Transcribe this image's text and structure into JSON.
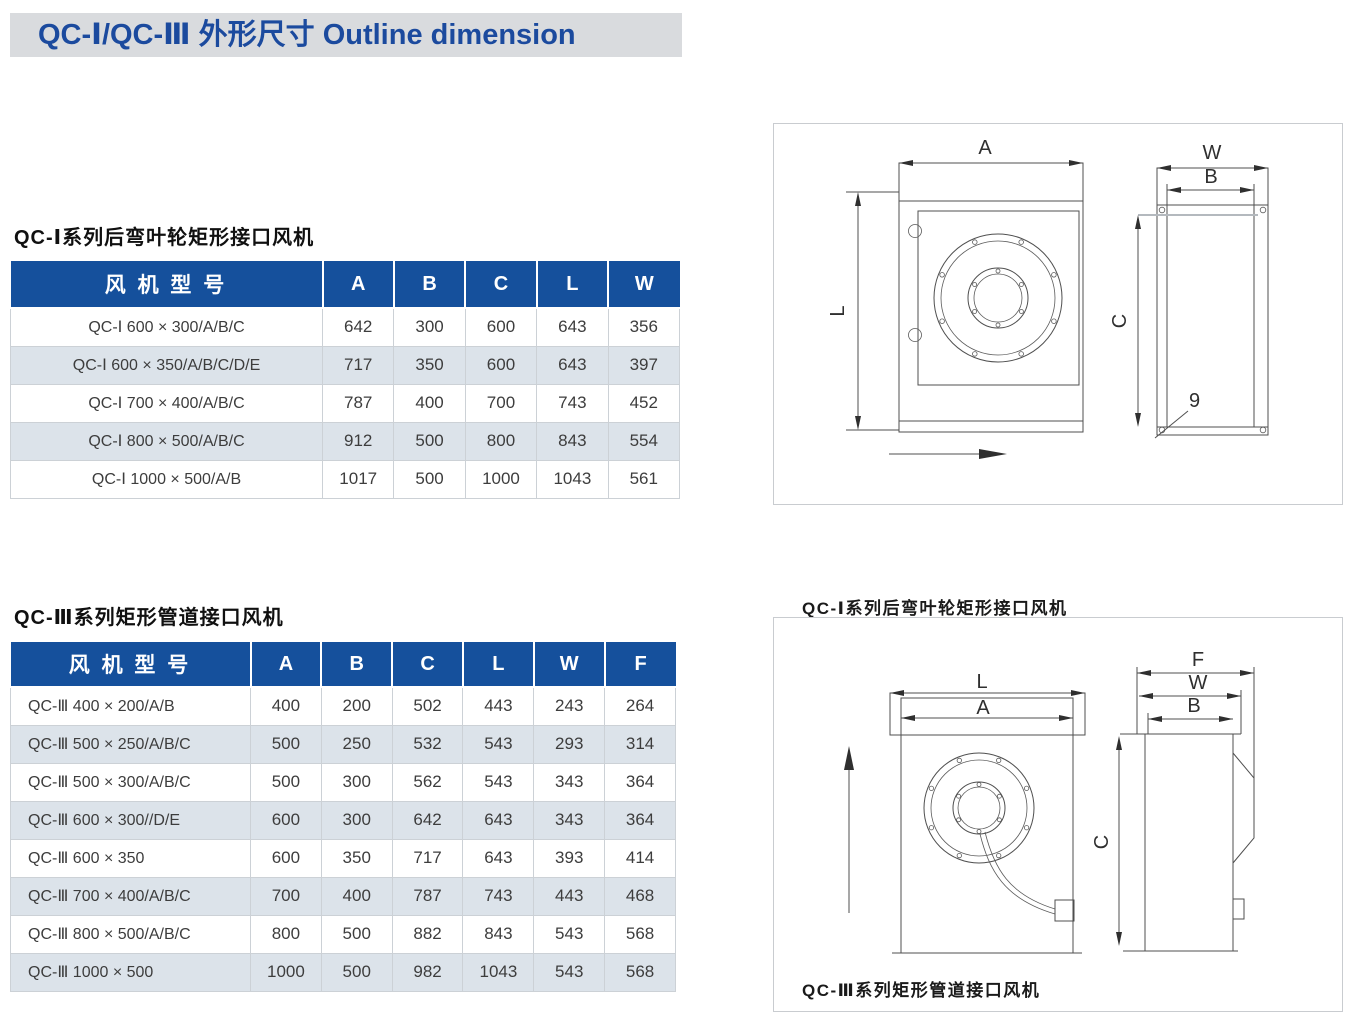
{
  "title_bar": {
    "text": "QC-Ⅰ/QC-Ⅲ  外形尺寸  Outline dimension"
  },
  "section1": {
    "heading": "QC-Ⅰ系列后弯叶轮矩形接口风机",
    "table": {
      "model_header": "风 机 型 号",
      "dim_headers": [
        "A",
        "B",
        "C",
        "L",
        "W"
      ],
      "rows": [
        {
          "model": "QC-Ⅰ 600 × 300/A/B/C",
          "values": [
            "642",
            "300",
            "600",
            "643",
            "356"
          ]
        },
        {
          "model": "QC-Ⅰ 600 × 350/A/B/C/D/E",
          "values": [
            "717",
            "350",
            "600",
            "643",
            "397"
          ]
        },
        {
          "model": "QC-Ⅰ 700 × 400/A/B/C",
          "values": [
            "787",
            "400",
            "700",
            "743",
            "452"
          ]
        },
        {
          "model": "QC-Ⅰ 800 × 500/A/B/C",
          "values": [
            "912",
            "500",
            "800",
            "843",
            "554"
          ]
        },
        {
          "model": "QC-Ⅰ 1000 × 500/A/B",
          "values": [
            "1017",
            "500",
            "1000",
            "1043",
            "561"
          ]
        }
      ]
    },
    "diagram": {
      "caption": "QC-Ⅰ系列后弯叶轮矩形接口风机",
      "labels": {
        "A": "A",
        "W": "W",
        "B": "B",
        "L": "L",
        "C": "C",
        "hole": "9"
      }
    }
  },
  "section2": {
    "heading": "QC-Ⅲ系列矩形管道接口风机",
    "table": {
      "model_header": "风 机 型 号",
      "dim_headers": [
        "A",
        "B",
        "C",
        "L",
        "W",
        "F"
      ],
      "rows": [
        {
          "model": "QC-Ⅲ 400 × 200/A/B",
          "values": [
            "400",
            "200",
            "502",
            "443",
            "243",
            "264"
          ]
        },
        {
          "model": "QC-Ⅲ 500 × 250/A/B/C",
          "values": [
            "500",
            "250",
            "532",
            "543",
            "293",
            "314"
          ]
        },
        {
          "model": "QC-Ⅲ 500 × 300/A/B/C",
          "values": [
            "500",
            "300",
            "562",
            "543",
            "343",
            "364"
          ]
        },
        {
          "model": "QC-Ⅲ 600 × 300//D/E",
          "values": [
            "600",
            "300",
            "642",
            "643",
            "343",
            "364"
          ]
        },
        {
          "model": "QC-Ⅲ 600 × 350",
          "values": [
            "600",
            "350",
            "717",
            "643",
            "393",
            "414"
          ]
        },
        {
          "model": "QC-Ⅲ 700 × 400/A/B/C",
          "values": [
            "700",
            "400",
            "787",
            "743",
            "443",
            "468"
          ]
        },
        {
          "model": "QC-Ⅲ 800 × 500/A/B/C",
          "values": [
            "800",
            "500",
            "882",
            "843",
            "543",
            "568"
          ]
        },
        {
          "model": "QC-Ⅲ 1000 × 500",
          "values": [
            "1000",
            "500",
            "982",
            "1043",
            "543",
            "568"
          ]
        }
      ]
    },
    "diagram": {
      "caption": "QC-Ⅲ系列矩形管道接口风机",
      "labels": {
        "L": "L",
        "A": "A",
        "F": "F",
        "W": "W",
        "B": "B",
        "C": "C"
      }
    }
  },
  "colors": {
    "header_blue": "#15509c",
    "title_blue": "#1b4a9e",
    "title_bar_bg": "#d9dbde",
    "row_alt": "#dce3ea"
  }
}
